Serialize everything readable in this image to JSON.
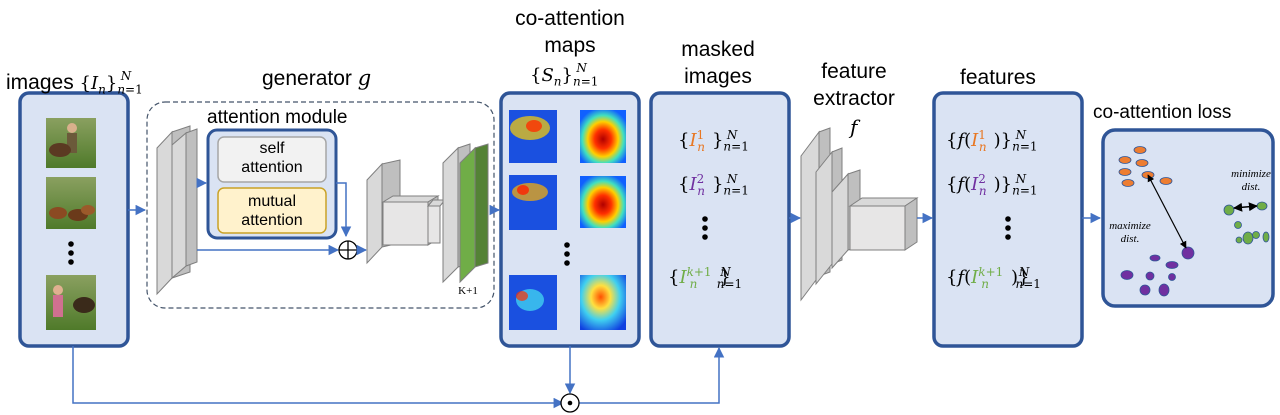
{
  "labels": {
    "images": "images",
    "generator": "generator",
    "generator_sym": "g",
    "attention_module": "attention module",
    "self_attention": "self attention",
    "mutual_attention": "mutual attention",
    "co_attention_maps": "co-attention maps",
    "masked_images": "masked images",
    "feature_extractor": "feature extractor",
    "feature_extractor_sym": "f",
    "features": "features",
    "co_attention_loss": "co-attention loss",
    "k_plus_1": "K+1",
    "maximize": "maximize dist.",
    "minimize": "minimize dist."
  },
  "math": {
    "images_set": "{I_n}_{n=1}^N",
    "maps_set": "{S_n}_{n=1}^N",
    "masked_1": "{I_n^1}_{n=1}^N",
    "masked_2": "{I_n^2}_{n=1}^N",
    "masked_k1": "{I_n^{k+1}}_{n=1}^N",
    "feat_1": "{f(I_n^1)}_{n=1}^N",
    "feat_2": "{f(I_n^2)}_{n=1}^N",
    "feat_k1": "{f(I_n^{k+1})}_{n=1}^N"
  },
  "colors": {
    "box_border": "#2f5597",
    "box_fill": "#dae3f3",
    "arrow": "#4472c4",
    "layer_fill": "#d9d9d9",
    "green_layer": "#70ad47",
    "self_attention_fill": "#f2f2f2",
    "mutual_attention_fill": "#fff2cc",
    "mutual_attention_border": "#c9a227",
    "orange_points": "#ed7d31",
    "purple_points": "#7030a0",
    "green_points": "#70ad47"
  },
  "icons": [
    "photo-thumbnails",
    "heatmap-thumbnails",
    "circle-plus-icon",
    "circle-dot-icon",
    "vertical-ellipsis"
  ]
}
